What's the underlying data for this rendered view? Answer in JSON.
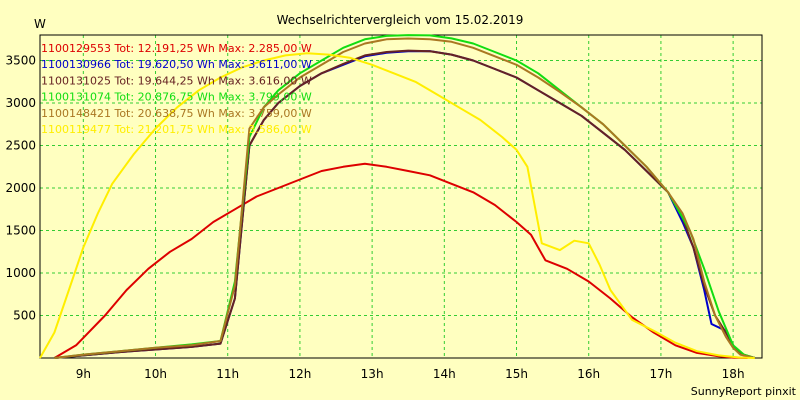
{
  "chart_data": {
    "type": "line",
    "title": "Wechselrichtervergleich vom 15.02.2019",
    "ylabel": "W",
    "xlabel": "",
    "footer": "SunnyReport pinxit",
    "xlim": [
      8.4,
      18.4
    ],
    "ylim": [
      0,
      3800
    ],
    "x_ticks": [
      9,
      10,
      11,
      12,
      13,
      14,
      15,
      16,
      17,
      18
    ],
    "x_tick_labels": [
      "9h",
      "10h",
      "11h",
      "12h",
      "13h",
      "14h",
      "15h",
      "16h",
      "17h",
      "18h"
    ],
    "y_ticks": [
      500,
      1000,
      1500,
      2000,
      2500,
      3000,
      3500
    ],
    "y_tick_labels": [
      "500",
      "1000",
      "1500",
      "2000",
      "2500",
      "3000",
      "3500"
    ],
    "grid": true,
    "legend_position": "top-left",
    "series": [
      {
        "name": "1100129553 Tot: 12.191,25 Wh Max: 2.285,00 W",
        "color": "#dd0000",
        "points": [
          [
            8.6,
            0
          ],
          [
            8.9,
            150
          ],
          [
            9.3,
            500
          ],
          [
            9.6,
            800
          ],
          [
            9.9,
            1050
          ],
          [
            10.2,
            1250
          ],
          [
            10.5,
            1400
          ],
          [
            10.8,
            1600
          ],
          [
            11.1,
            1750
          ],
          [
            11.4,
            1900
          ],
          [
            11.7,
            2000
          ],
          [
            12.0,
            2100
          ],
          [
            12.3,
            2200
          ],
          [
            12.6,
            2250
          ],
          [
            12.9,
            2285
          ],
          [
            13.2,
            2250
          ],
          [
            13.5,
            2200
          ],
          [
            13.8,
            2150
          ],
          [
            14.1,
            2050
          ],
          [
            14.4,
            1950
          ],
          [
            14.7,
            1800
          ],
          [
            15.0,
            1600
          ],
          [
            15.2,
            1450
          ],
          [
            15.4,
            1150
          ],
          [
            15.7,
            1050
          ],
          [
            16.0,
            900
          ],
          [
            16.3,
            700
          ],
          [
            16.6,
            480
          ],
          [
            16.9,
            300
          ],
          [
            17.2,
            150
          ],
          [
            17.5,
            60
          ],
          [
            17.8,
            20
          ],
          [
            18.0,
            5
          ],
          [
            18.2,
            0
          ]
        ]
      },
      {
        "name": "1100130966 Tot: 19.620,50 Wh Max: 3.611,00 W",
        "color": "#0000cc",
        "points": [
          [
            8.6,
            0
          ],
          [
            9.0,
            30
          ],
          [
            9.5,
            70
          ],
          [
            10.0,
            100
          ],
          [
            10.5,
            130
          ],
          [
            10.9,
            170
          ],
          [
            11.1,
            700
          ],
          [
            11.3,
            2500
          ],
          [
            11.5,
            2800
          ],
          [
            11.7,
            3000
          ],
          [
            12.0,
            3200
          ],
          [
            12.3,
            3350
          ],
          [
            12.6,
            3450
          ],
          [
            12.9,
            3550
          ],
          [
            13.2,
            3590
          ],
          [
            13.5,
            3610
          ],
          [
            13.8,
            3611
          ],
          [
            14.1,
            3570
          ],
          [
            14.4,
            3500
          ],
          [
            14.7,
            3400
          ],
          [
            15.0,
            3300
          ],
          [
            15.3,
            3150
          ],
          [
            15.6,
            3000
          ],
          [
            15.9,
            2850
          ],
          [
            16.2,
            2650
          ],
          [
            16.5,
            2450
          ],
          [
            16.8,
            2200
          ],
          [
            17.1,
            1950
          ],
          [
            17.3,
            1600
          ],
          [
            17.45,
            1300
          ],
          [
            17.6,
            800
          ],
          [
            17.7,
            400
          ],
          [
            17.9,
            320
          ],
          [
            18.0,
            150
          ],
          [
            18.1,
            50
          ],
          [
            18.3,
            0
          ]
        ]
      },
      {
        "name": "1100131025 Tot: 19.644,25 Wh Max: 3.616,00 W",
        "color": "#662222",
        "points": [
          [
            8.6,
            0
          ],
          [
            9.0,
            30
          ],
          [
            9.5,
            70
          ],
          [
            10.0,
            100
          ],
          [
            10.5,
            130
          ],
          [
            10.9,
            170
          ],
          [
            11.1,
            700
          ],
          [
            11.3,
            2500
          ],
          [
            11.5,
            2800
          ],
          [
            11.7,
            3000
          ],
          [
            12.0,
            3200
          ],
          [
            12.3,
            3350
          ],
          [
            12.6,
            3460
          ],
          [
            12.9,
            3560
          ],
          [
            13.2,
            3600
          ],
          [
            13.5,
            3616
          ],
          [
            13.8,
            3610
          ],
          [
            14.1,
            3570
          ],
          [
            14.4,
            3500
          ],
          [
            14.7,
            3400
          ],
          [
            15.0,
            3300
          ],
          [
            15.3,
            3150
          ],
          [
            15.6,
            3000
          ],
          [
            15.9,
            2850
          ],
          [
            16.2,
            2650
          ],
          [
            16.5,
            2450
          ],
          [
            16.8,
            2200
          ],
          [
            17.1,
            1950
          ],
          [
            17.3,
            1650
          ],
          [
            17.45,
            1300
          ],
          [
            17.6,
            850
          ],
          [
            17.75,
            500
          ],
          [
            17.9,
            300
          ],
          [
            18.0,
            150
          ],
          [
            18.1,
            50
          ],
          [
            18.3,
            0
          ]
        ]
      },
      {
        "name": "1100131074 Tot: 20.876,75 Wh Max: 3.799,00 W",
        "color": "#11dd11",
        "points": [
          [
            8.6,
            0
          ],
          [
            9.0,
            40
          ],
          [
            9.5,
            80
          ],
          [
            10.0,
            120
          ],
          [
            10.5,
            160
          ],
          [
            10.9,
            200
          ],
          [
            11.1,
            900
          ],
          [
            11.3,
            2600
          ],
          [
            11.5,
            2950
          ],
          [
            11.7,
            3150
          ],
          [
            12.0,
            3350
          ],
          [
            12.3,
            3500
          ],
          [
            12.6,
            3650
          ],
          [
            12.9,
            3750
          ],
          [
            13.2,
            3790
          ],
          [
            13.5,
            3799
          ],
          [
            13.8,
            3795
          ],
          [
            14.1,
            3760
          ],
          [
            14.4,
            3700
          ],
          [
            14.7,
            3600
          ],
          [
            15.0,
            3500
          ],
          [
            15.3,
            3350
          ],
          [
            15.6,
            3150
          ],
          [
            15.9,
            2950
          ],
          [
            16.2,
            2750
          ],
          [
            16.5,
            2500
          ],
          [
            16.8,
            2250
          ],
          [
            17.1,
            1950
          ],
          [
            17.4,
            1500
          ],
          [
            17.6,
            1050
          ],
          [
            17.8,
            550
          ],
          [
            18.0,
            150
          ],
          [
            18.15,
            40
          ],
          [
            18.3,
            0
          ]
        ]
      },
      {
        "name": "1100148421 Tot: 20.638,75 Wh Max: 3.759,00 W",
        "color": "#aa7722",
        "points": [
          [
            8.6,
            0
          ],
          [
            9.0,
            40
          ],
          [
            9.5,
            80
          ],
          [
            10.0,
            120
          ],
          [
            10.5,
            150
          ],
          [
            10.9,
            200
          ],
          [
            11.1,
            850
          ],
          [
            11.3,
            2700
          ],
          [
            11.5,
            2950
          ],
          [
            11.7,
            3100
          ],
          [
            12.0,
            3300
          ],
          [
            12.3,
            3450
          ],
          [
            12.6,
            3600
          ],
          [
            12.9,
            3700
          ],
          [
            13.2,
            3750
          ],
          [
            13.5,
            3759
          ],
          [
            13.8,
            3750
          ],
          [
            14.1,
            3720
          ],
          [
            14.4,
            3650
          ],
          [
            14.7,
            3550
          ],
          [
            15.0,
            3450
          ],
          [
            15.3,
            3300
          ],
          [
            15.6,
            3130
          ],
          [
            15.9,
            2950
          ],
          [
            16.2,
            2750
          ],
          [
            16.5,
            2500
          ],
          [
            16.8,
            2250
          ],
          [
            17.1,
            1950
          ],
          [
            17.3,
            1700
          ],
          [
            17.45,
            1400
          ],
          [
            17.6,
            900
          ],
          [
            17.75,
            500
          ],
          [
            17.9,
            250
          ],
          [
            18.0,
            120
          ],
          [
            18.1,
            40
          ],
          [
            18.3,
            0
          ]
        ]
      },
      {
        "name": "1100119477 Tot: 21.201,75 Wh Max: 3.586,00 W",
        "color": "#ffee00",
        "points": [
          [
            8.4,
            0
          ],
          [
            8.6,
            300
          ],
          [
            8.8,
            800
          ],
          [
            9.0,
            1300
          ],
          [
            9.2,
            1700
          ],
          [
            9.4,
            2050
          ],
          [
            9.7,
            2400
          ],
          [
            10.0,
            2700
          ],
          [
            10.3,
            2950
          ],
          [
            10.6,
            3150
          ],
          [
            10.9,
            3300
          ],
          [
            11.2,
            3420
          ],
          [
            11.5,
            3500
          ],
          [
            11.8,
            3560
          ],
          [
            12.1,
            3586
          ],
          [
            12.4,
            3570
          ],
          [
            12.7,
            3530
          ],
          [
            13.0,
            3450
          ],
          [
            13.3,
            3350
          ],
          [
            13.6,
            3250
          ],
          [
            13.9,
            3100
          ],
          [
            14.2,
            2950
          ],
          [
            14.5,
            2800
          ],
          [
            14.8,
            2600
          ],
          [
            15.0,
            2450
          ],
          [
            15.15,
            2250
          ],
          [
            15.35,
            1350
          ],
          [
            15.6,
            1270
          ],
          [
            15.8,
            1380
          ],
          [
            16.0,
            1350
          ],
          [
            16.15,
            1100
          ],
          [
            16.3,
            800
          ],
          [
            16.6,
            450
          ],
          [
            16.9,
            320
          ],
          [
            17.2,
            180
          ],
          [
            17.5,
            80
          ],
          [
            17.8,
            30
          ],
          [
            18.1,
            5
          ],
          [
            18.3,
            0
          ]
        ]
      }
    ]
  }
}
